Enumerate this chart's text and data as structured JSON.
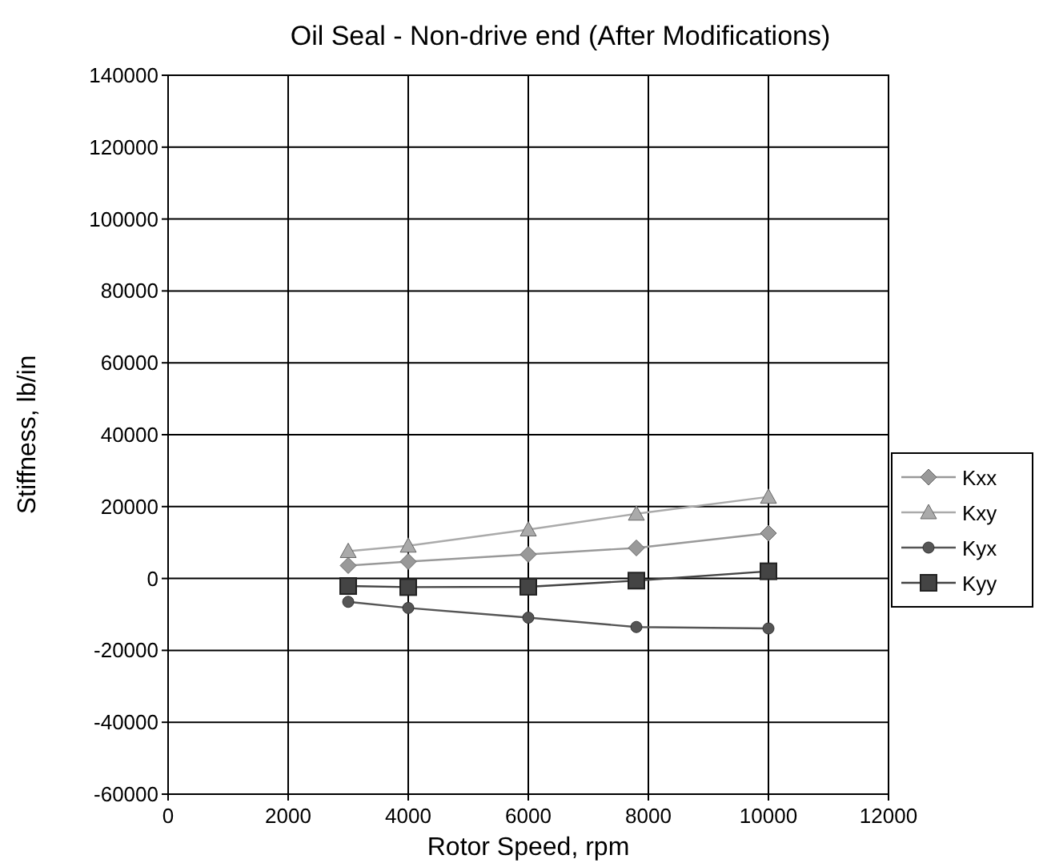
{
  "chart_data": {
    "type": "line",
    "title": "Oil Seal - Non-drive end (After Modifications)",
    "xlabel": "Rotor Speed, rpm",
    "ylabel": "Stiffness, lb/in",
    "x": [
      3000,
      4000,
      6000,
      7800,
      10000
    ],
    "xlim": [
      0,
      12000
    ],
    "xticks": [
      0,
      2000,
      4000,
      6000,
      8000,
      10000,
      12000
    ],
    "ylim": [
      -60000,
      140000
    ],
    "yticks": [
      -60000,
      -40000,
      -20000,
      0,
      20000,
      40000,
      60000,
      80000,
      100000,
      120000,
      140000
    ],
    "grid": true,
    "legend": "right",
    "series": [
      {
        "name": "Kxx",
        "color": "#999999",
        "marker": "diamond",
        "values": [
          3600,
          4700,
          6700,
          8500,
          12600
        ]
      },
      {
        "name": "Kxy",
        "color": "#aaaaaa",
        "marker": "triangle",
        "values": [
          7600,
          9100,
          13600,
          18000,
          22700
        ]
      },
      {
        "name": "Kyx",
        "color": "#555555",
        "marker": "circle",
        "values": [
          -6500,
          -8200,
          -10900,
          -13500,
          -13900
        ]
      },
      {
        "name": "Kyy",
        "color": "#444444",
        "marker": "square",
        "values": [
          -2100,
          -2400,
          -2300,
          -600,
          2000
        ]
      }
    ]
  }
}
